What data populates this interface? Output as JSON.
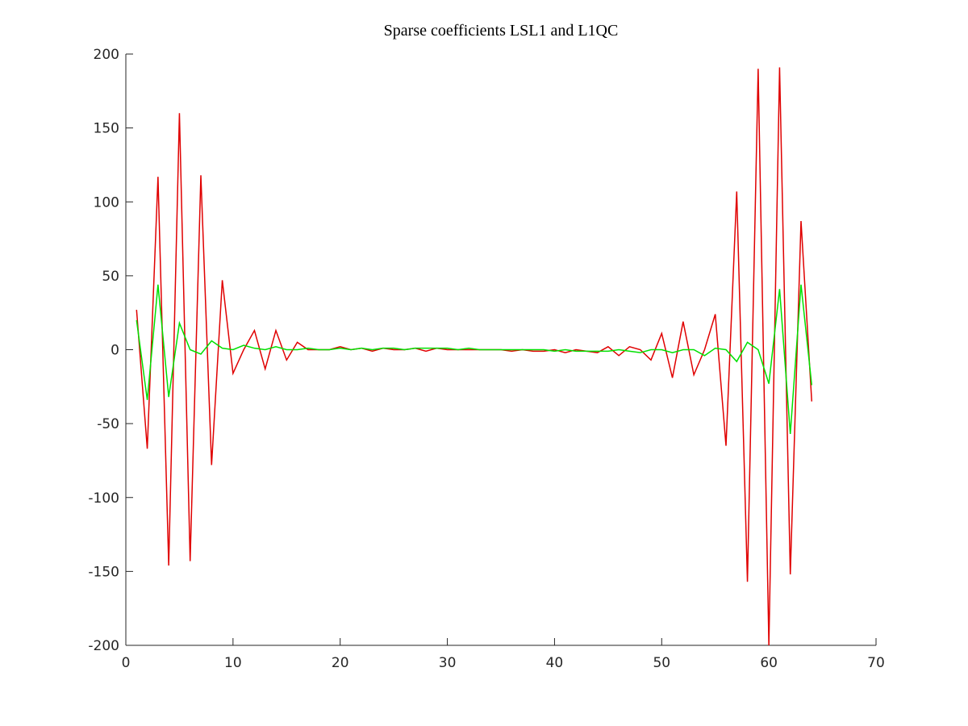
{
  "chart_data": {
    "type": "line",
    "title": "Sparse coefficients LSL1 and L1QC",
    "x": [
      1,
      2,
      3,
      4,
      5,
      6,
      7,
      8,
      9,
      10,
      11,
      12,
      13,
      14,
      15,
      16,
      17,
      18,
      19,
      20,
      21,
      22,
      23,
      24,
      25,
      26,
      27,
      28,
      29,
      30,
      31,
      32,
      33,
      34,
      35,
      36,
      37,
      38,
      39,
      40,
      41,
      42,
      43,
      44,
      45,
      46,
      47,
      48,
      49,
      50,
      51,
      52,
      53,
      54,
      55,
      56,
      57,
      58,
      59,
      60,
      61,
      62,
      63,
      64
    ],
    "series": [
      {
        "name": "LSL1",
        "color": "#e00000",
        "values": [
          27,
          -67,
          117,
          -146,
          160,
          -143,
          118,
          -78,
          47,
          -16,
          0,
          13,
          -13,
          13,
          -7,
          5,
          0,
          0,
          0,
          2,
          0,
          1,
          -1,
          1,
          0,
          0,
          1,
          -1,
          1,
          0,
          0,
          0,
          0,
          0,
          0,
          -1,
          0,
          -1,
          -1,
          0,
          -2,
          0,
          -1,
          -2,
          2,
          -4,
          2,
          0,
          -7,
          11,
          -19,
          19,
          -17,
          0,
          24,
          -65,
          107,
          -157,
          190,
          -200,
          191,
          -152,
          87,
          -35
        ]
      },
      {
        "name": "L1QC",
        "color": "#00e000",
        "values": [
          20,
          -34,
          44,
          -32,
          18,
          0,
          -3,
          6,
          1,
          0,
          3,
          1,
          0,
          2,
          0,
          0,
          1,
          0,
          0,
          1,
          0,
          1,
          0,
          1,
          1,
          0,
          1,
          1,
          1,
          1,
          0,
          1,
          0,
          0,
          0,
          0,
          0,
          0,
          0,
          -1,
          0,
          -1,
          -1,
          -1,
          -1,
          0,
          -1,
          -2,
          0,
          0,
          -2,
          0,
          0,
          -4,
          1,
          0,
          -8,
          5,
          0,
          -23,
          41,
          -57,
          44,
          -24
        ]
      }
    ],
    "xlim": [
      0,
      70
    ],
    "xticks": [
      0,
      10,
      20,
      30,
      40,
      50,
      60,
      70
    ],
    "ylim": [
      -200,
      200
    ],
    "yticks": [
      -200,
      -150,
      -100,
      -50,
      0,
      50,
      100,
      150,
      200
    ]
  }
}
